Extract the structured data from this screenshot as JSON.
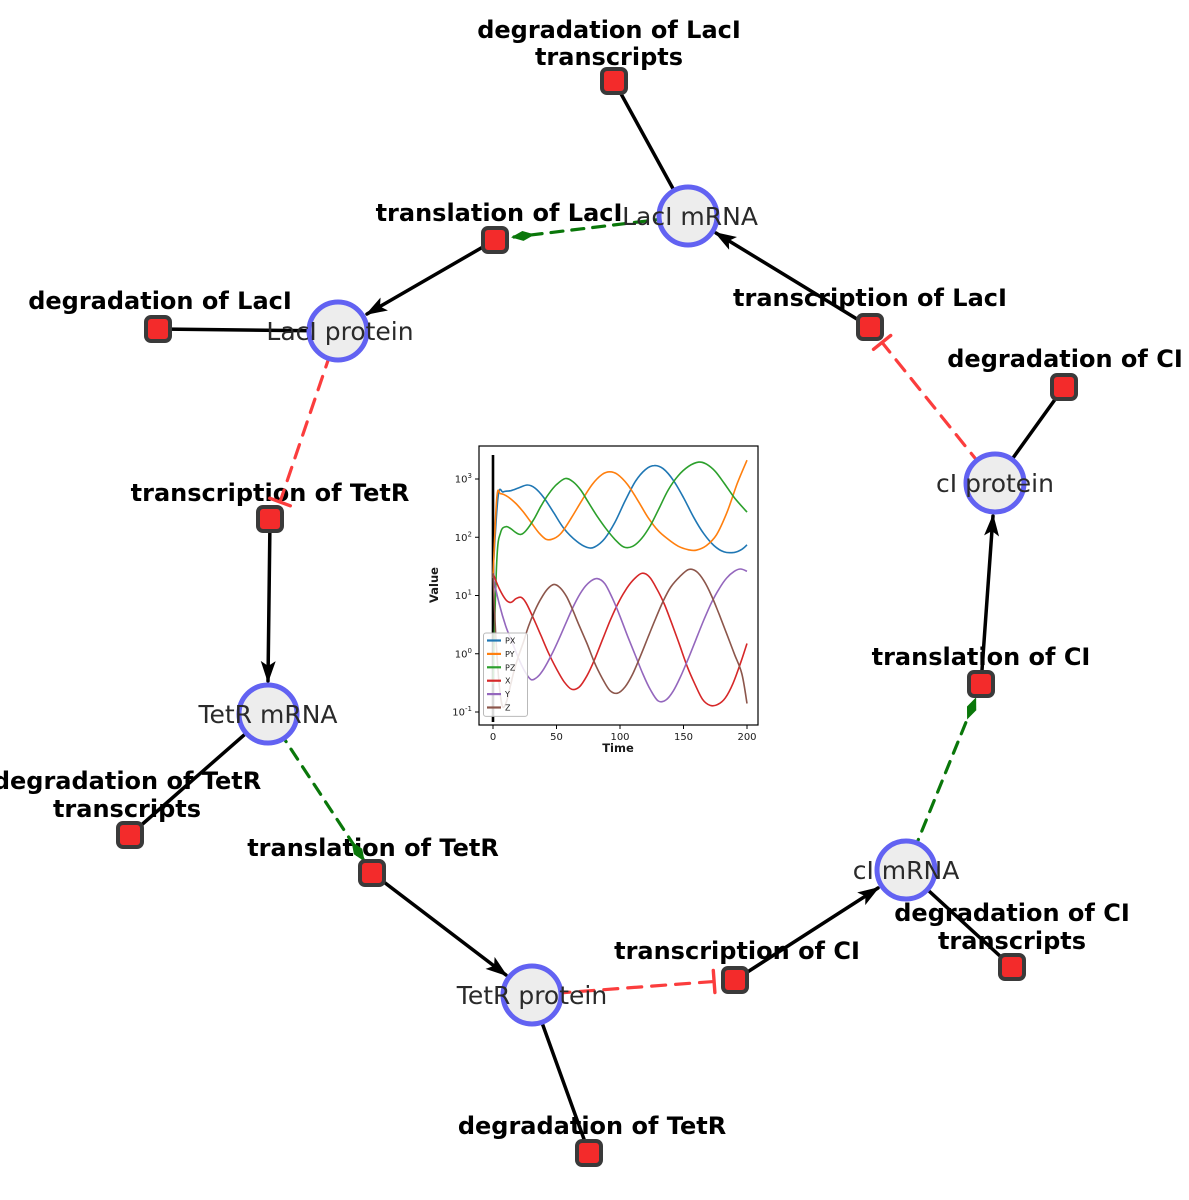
{
  "diagram": {
    "species": {
      "laci_mrna": {
        "label": "LacI mRNA"
      },
      "laci_protein": {
        "label": "LacI protein"
      },
      "tetr_mrna": {
        "label": "TetR mRNA"
      },
      "tetr_protein": {
        "label": "TetR protein"
      },
      "ci_mrna": {
        "label": "cI mRNA"
      },
      "ci_protein": {
        "label": "cI protein"
      }
    },
    "reactions": {
      "deg_laci_tr": {
        "lines": [
          "degradation of LacI",
          "transcripts"
        ]
      },
      "tl_laci": {
        "lines": [
          "translation of LacI"
        ]
      },
      "deg_laci": {
        "lines": [
          "degradation of LacI"
        ]
      },
      "tc_laci": {
        "lines": [
          "transcription of LacI"
        ]
      },
      "deg_ci": {
        "lines": [
          "degradation of CI"
        ]
      },
      "tc_tetr": {
        "lines": [
          "transcription of TetR"
        ]
      },
      "deg_tetr_tr": {
        "lines": [
          "degradation of TetR",
          "transcripts"
        ]
      },
      "tl_tetr": {
        "lines": [
          "translation of TetR"
        ]
      },
      "deg_tetr": {
        "lines": [
          "degradation of TetR"
        ]
      },
      "tc_ci": {
        "lines": [
          "transcription of CI"
        ]
      },
      "deg_ci_tr": {
        "lines": [
          "degradation of CI",
          "transcripts"
        ]
      },
      "tl_ci": {
        "lines": [
          "translation of CI"
        ]
      }
    },
    "colors": {
      "species_fill": "#ededed",
      "species_border": "#6262f2",
      "reaction_fill": "#f32b2b",
      "reaction_border": "#3a3a3a",
      "edge_black": "#000000",
      "modifier_green": "#0a770a",
      "inhibition_red": "#fb3d3d"
    }
  },
  "chart_data": {
    "type": "line",
    "title": "",
    "xlabel": "Time",
    "ylabel": "Value",
    "x_ticks": [
      0,
      50,
      100,
      150,
      200
    ],
    "y_tick_exponents": [
      -1,
      0,
      1,
      2,
      3
    ],
    "xlim": [
      -11,
      208
    ],
    "ylim_log10": [
      -1.22,
      3.57
    ],
    "grid": false,
    "legend_position": "lower left",
    "start_marker_line_x": 0,
    "series": [
      {
        "name": "PX",
        "color": "#1f77b4",
        "points": [
          [
            0,
            24
          ],
          [
            4,
            500
          ],
          [
            8,
            600
          ],
          [
            14,
            630
          ],
          [
            20,
            700
          ],
          [
            27,
            790
          ],
          [
            33,
            700
          ],
          [
            40,
            480
          ],
          [
            48,
            260
          ],
          [
            56,
            140
          ],
          [
            66,
            85
          ],
          [
            74,
            67
          ],
          [
            80,
            68
          ],
          [
            88,
            95
          ],
          [
            96,
            180
          ],
          [
            104,
            420
          ],
          [
            112,
            900
          ],
          [
            120,
            1450
          ],
          [
            127,
            1700
          ],
          [
            134,
            1500
          ],
          [
            142,
            950
          ],
          [
            150,
            480
          ],
          [
            158,
            220
          ],
          [
            166,
            115
          ],
          [
            174,
            72
          ],
          [
            182,
            56
          ],
          [
            190,
            55
          ],
          [
            196,
            62
          ],
          [
            200,
            74
          ]
        ]
      },
      {
        "name": "PY",
        "color": "#ff7f0e",
        "points": [
          [
            0,
            20
          ],
          [
            3,
            480
          ],
          [
            6,
            560
          ],
          [
            12,
            490
          ],
          [
            18,
            380
          ],
          [
            24,
            270
          ],
          [
            30,
            180
          ],
          [
            36,
            120
          ],
          [
            42,
            92
          ],
          [
            48,
            95
          ],
          [
            54,
            120
          ],
          [
            62,
            220
          ],
          [
            70,
            430
          ],
          [
            78,
            800
          ],
          [
            86,
            1200
          ],
          [
            92,
            1330
          ],
          [
            98,
            1200
          ],
          [
            106,
            800
          ],
          [
            114,
            430
          ],
          [
            122,
            220
          ],
          [
            130,
            130
          ],
          [
            138,
            92
          ],
          [
            146,
            70
          ],
          [
            154,
            61
          ],
          [
            160,
            60
          ],
          [
            168,
            72
          ],
          [
            176,
            110
          ],
          [
            184,
            260
          ],
          [
            192,
            800
          ],
          [
            200,
            2100
          ]
        ]
      },
      {
        "name": "PZ",
        "color": "#2ca02c",
        "points": [
          [
            0,
            0.3
          ],
          [
            3,
            40
          ],
          [
            6,
            120
          ],
          [
            10,
            152
          ],
          [
            14,
            140
          ],
          [
            18,
            120
          ],
          [
            22,
            112
          ],
          [
            26,
            130
          ],
          [
            32,
            200
          ],
          [
            38,
            350
          ],
          [
            44,
            560
          ],
          [
            50,
            800
          ],
          [
            57,
            1020
          ],
          [
            63,
            900
          ],
          [
            69,
            650
          ],
          [
            75,
            400
          ],
          [
            82,
            230
          ],
          [
            89,
            140
          ],
          [
            96,
            92
          ],
          [
            103,
            68
          ],
          [
            110,
            70
          ],
          [
            117,
            95
          ],
          [
            124,
            160
          ],
          [
            131,
            320
          ],
          [
            138,
            650
          ],
          [
            146,
            1150
          ],
          [
            154,
            1650
          ],
          [
            162,
            1950
          ],
          [
            168,
            1800
          ],
          [
            175,
            1350
          ],
          [
            182,
            850
          ],
          [
            190,
            480
          ],
          [
            200,
            270
          ]
        ]
      },
      {
        "name": "X",
        "color": "#d62728",
        "points": [
          [
            0,
            24
          ],
          [
            5,
            13
          ],
          [
            10,
            8.5
          ],
          [
            14,
            7.6
          ],
          [
            18,
            8.8
          ],
          [
            22,
            9.3
          ],
          [
            26,
            7.5
          ],
          [
            32,
            4
          ],
          [
            38,
            2
          ],
          [
            44,
            1
          ],
          [
            50,
            0.55
          ],
          [
            56,
            0.33
          ],
          [
            62,
            0.245
          ],
          [
            68,
            0.27
          ],
          [
            74,
            0.42
          ],
          [
            80,
            0.8
          ],
          [
            86,
            1.7
          ],
          [
            92,
            3.6
          ],
          [
            98,
            7
          ],
          [
            104,
            12
          ],
          [
            110,
            18
          ],
          [
            117,
            24
          ],
          [
            123,
            21
          ],
          [
            129,
            13
          ],
          [
            135,
            7
          ],
          [
            141,
            3.2
          ],
          [
            147,
            1.4
          ],
          [
            153,
            0.6
          ],
          [
            159,
            0.3
          ],
          [
            165,
            0.165
          ],
          [
            171,
            0.13
          ],
          [
            177,
            0.135
          ],
          [
            183,
            0.175
          ],
          [
            189,
            0.31
          ],
          [
            195,
            0.7
          ],
          [
            200,
            1.5
          ]
        ]
      },
      {
        "name": "Y",
        "color": "#9467bd",
        "points": [
          [
            0,
            21
          ],
          [
            5,
            7
          ],
          [
            10,
            3
          ],
          [
            15,
            1.6
          ],
          [
            20,
            0.85
          ],
          [
            25,
            0.5
          ],
          [
            30,
            0.36
          ],
          [
            35,
            0.4
          ],
          [
            40,
            0.55
          ],
          [
            46,
            0.95
          ],
          [
            52,
            1.8
          ],
          [
            58,
            3.6
          ],
          [
            64,
            7
          ],
          [
            70,
            12
          ],
          [
            76,
            17
          ],
          [
            82,
            19.5
          ],
          [
            88,
            16
          ],
          [
            94,
            9
          ],
          [
            100,
            4.4
          ],
          [
            106,
            2
          ],
          [
            112,
            0.95
          ],
          [
            118,
            0.45
          ],
          [
            124,
            0.24
          ],
          [
            130,
            0.155
          ],
          [
            136,
            0.16
          ],
          [
            142,
            0.23
          ],
          [
            148,
            0.42
          ],
          [
            154,
            0.85
          ],
          [
            160,
            1.8
          ],
          [
            166,
            3.8
          ],
          [
            172,
            7.5
          ],
          [
            178,
            13
          ],
          [
            184,
            20
          ],
          [
            190,
            26
          ],
          [
            195,
            28.5
          ],
          [
            200,
            26
          ]
        ]
      },
      {
        "name": "Z",
        "color": "#8c564b",
        "points": [
          [
            0,
            24
          ],
          [
            2,
            2.5
          ],
          [
            4,
            0.5
          ],
          [
            6,
            0.18
          ],
          [
            8,
            0.12
          ],
          [
            11,
            0.16
          ],
          [
            14,
            0.3
          ],
          [
            17,
            0.55
          ],
          [
            20,
            0.9
          ],
          [
            24,
            1.6
          ],
          [
            28,
            3
          ],
          [
            33,
            5.5
          ],
          [
            38,
            9
          ],
          [
            43,
            13
          ],
          [
            48,
            15.5
          ],
          [
            53,
            13.5
          ],
          [
            58,
            9.5
          ],
          [
            63,
            5.5
          ],
          [
            68,
            3
          ],
          [
            74,
            1.5
          ],
          [
            80,
            0.7
          ],
          [
            86,
            0.38
          ],
          [
            92,
            0.235
          ],
          [
            98,
            0.21
          ],
          [
            104,
            0.27
          ],
          [
            110,
            0.45
          ],
          [
            116,
            0.9
          ],
          [
            122,
            1.9
          ],
          [
            128,
            4
          ],
          [
            134,
            8
          ],
          [
            140,
            14
          ],
          [
            147,
            21
          ],
          [
            154,
            28
          ],
          [
            160,
            26
          ],
          [
            166,
            18
          ],
          [
            172,
            10
          ],
          [
            178,
            4.8
          ],
          [
            184,
            2.2
          ],
          [
            190,
            1
          ],
          [
            196,
            0.45
          ],
          [
            200,
            0.14
          ]
        ]
      }
    ]
  }
}
